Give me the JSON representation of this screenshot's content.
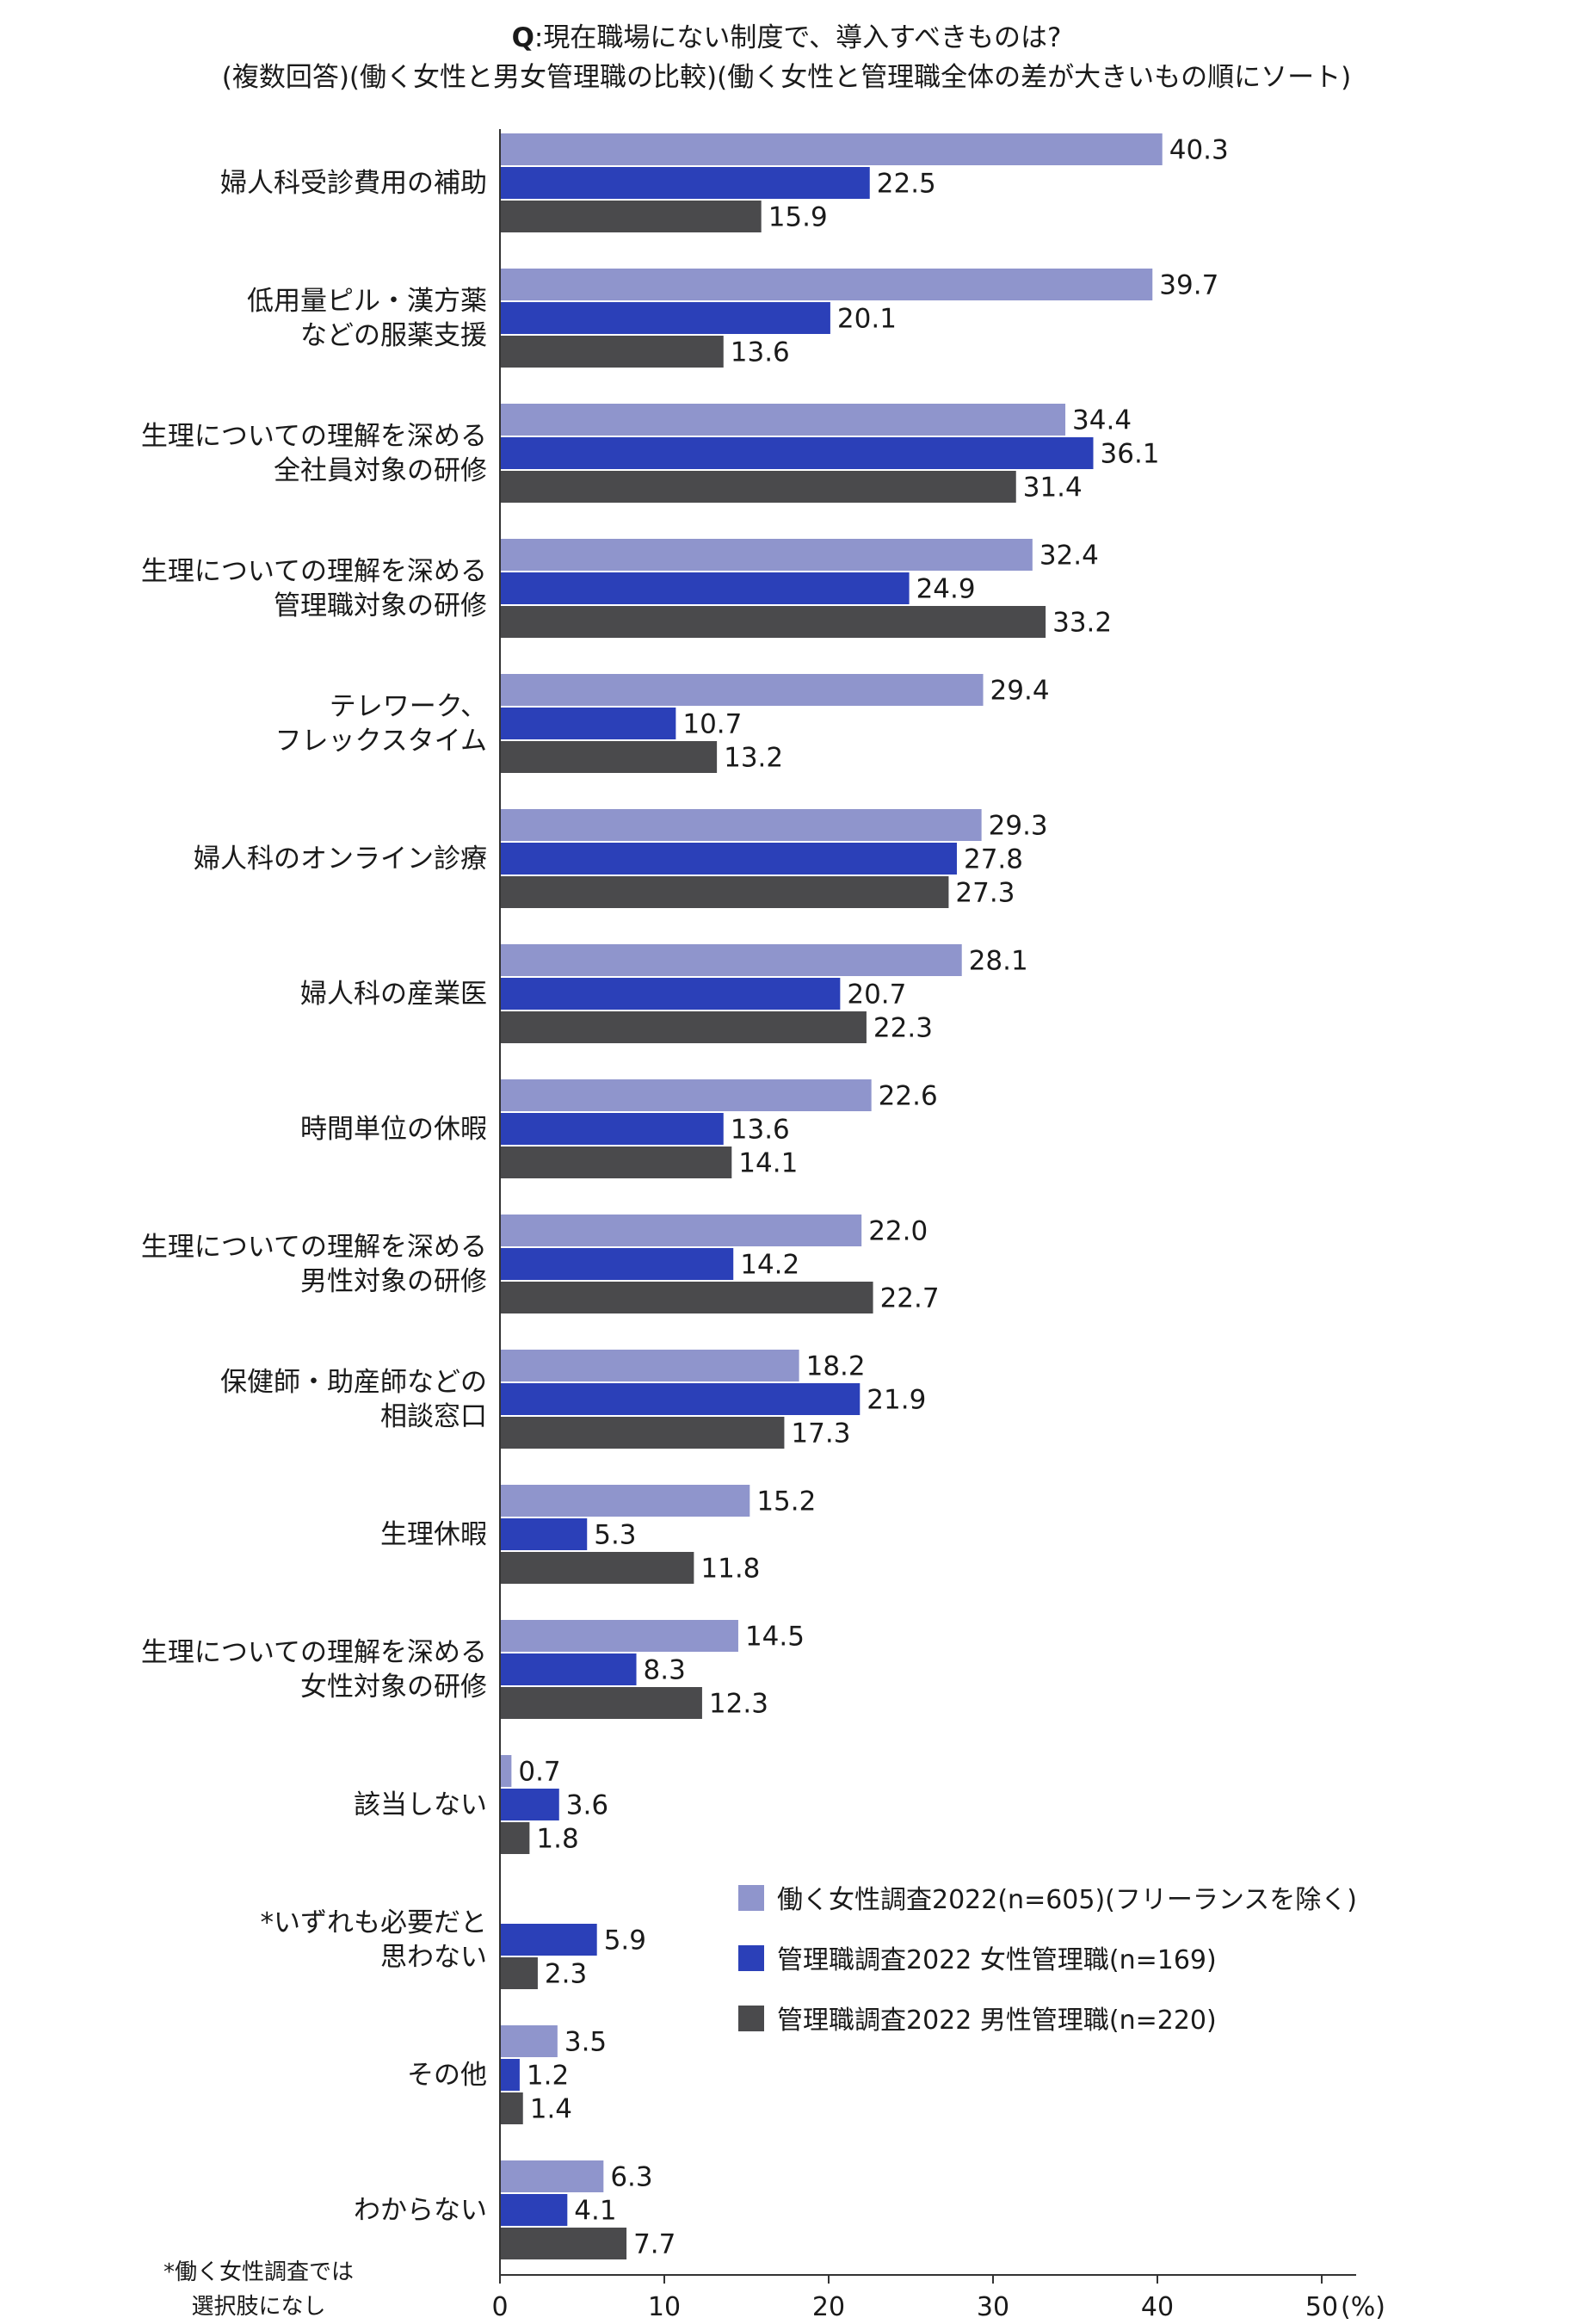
{
  "question_label": "Q",
  "title_line1": ":現在職場にない制度で、導入すべきものは?",
  "title_line2": "(複数回答)(働く女性と男女管理職の比較)(働く女性と管理職全体の差が大きいもの順にソート)",
  "footnote_line1": "*働く女性調査では",
  "footnote_line2": "選択肢になし",
  "colors": {
    "series1": "#8f95cc",
    "series2": "#2b40b8",
    "series3": "#4a4a4c"
  },
  "chart_data": {
    "type": "bar",
    "orientation": "horizontal",
    "title": "現在職場にない制度で、導入すべきものは?",
    "categories": [
      [
        "婦人科受診費用の補助"
      ],
      [
        "低用量ピル・漢方薬",
        "などの服薬支援"
      ],
      [
        "生理についての理解を深める",
        "全社員対象の研修"
      ],
      [
        "生理についての理解を深める",
        "管理職対象の研修"
      ],
      [
        "テレワーク、",
        "フレックスタイム"
      ],
      [
        "婦人科のオンライン診療"
      ],
      [
        "婦人科の産業医"
      ],
      [
        "時間単位の休暇"
      ],
      [
        "生理についての理解を深める",
        "男性対象の研修"
      ],
      [
        "保健師・助産師などの",
        "相談窓口"
      ],
      [
        "生理休暇"
      ],
      [
        "生理についての理解を深める",
        "女性対象の研修"
      ],
      [
        "該当しない"
      ],
      [
        "*いずれも必要だと",
        "思わない"
      ],
      [
        "その他"
      ],
      [
        "わからない"
      ]
    ],
    "series": [
      {
        "name": "働く女性調査2022(n=605)(フリーランスを除く)",
        "values": [
          40.3,
          39.7,
          34.4,
          32.4,
          29.4,
          29.3,
          28.1,
          22.6,
          22.0,
          18.2,
          15.2,
          14.5,
          0.7,
          null,
          3.5,
          6.3
        ],
        "labels": [
          "40.3",
          "39.7",
          "34.4",
          "32.4",
          "29.4",
          "29.3",
          "28.1",
          "22.6",
          "22.0",
          "18.2",
          "15.2",
          "14.5",
          "0.7",
          "",
          "3.5",
          "6.3"
        ]
      },
      {
        "name": "管理職調査2022 女性管理職(n=169)",
        "values": [
          22.5,
          20.1,
          36.1,
          24.9,
          10.7,
          27.8,
          20.7,
          13.6,
          14.2,
          21.9,
          5.3,
          8.3,
          3.6,
          5.9,
          1.2,
          4.1
        ],
        "labels": [
          "22.5",
          "20.1",
          "36.1",
          "24.9",
          "10.7",
          "27.8",
          "20.7",
          "13.6",
          "14.2",
          "21.9",
          "5.3",
          "8.3",
          "3.6",
          "5.9",
          "1.2",
          "4.1"
        ]
      },
      {
        "name": "管理職調査2022 男性管理職(n=220)",
        "values": [
          15.9,
          13.6,
          31.4,
          33.2,
          13.2,
          27.3,
          22.3,
          14.1,
          22.7,
          17.3,
          11.8,
          12.3,
          1.8,
          2.3,
          1.4,
          7.7
        ],
        "labels": [
          "15.9",
          "13.6",
          "31.4",
          "33.2",
          "13.2",
          "27.3",
          "22.3",
          "14.1",
          "22.7",
          "17.3",
          "11.8",
          "12.3",
          "1.8",
          "2.3",
          "1.4",
          "7.7"
        ]
      }
    ],
    "xlim": [
      0,
      50
    ],
    "xticks": [
      "0",
      "10",
      "20",
      "30",
      "40",
      "50"
    ],
    "xunit": "(%)",
    "legend_position": "lower-right"
  }
}
